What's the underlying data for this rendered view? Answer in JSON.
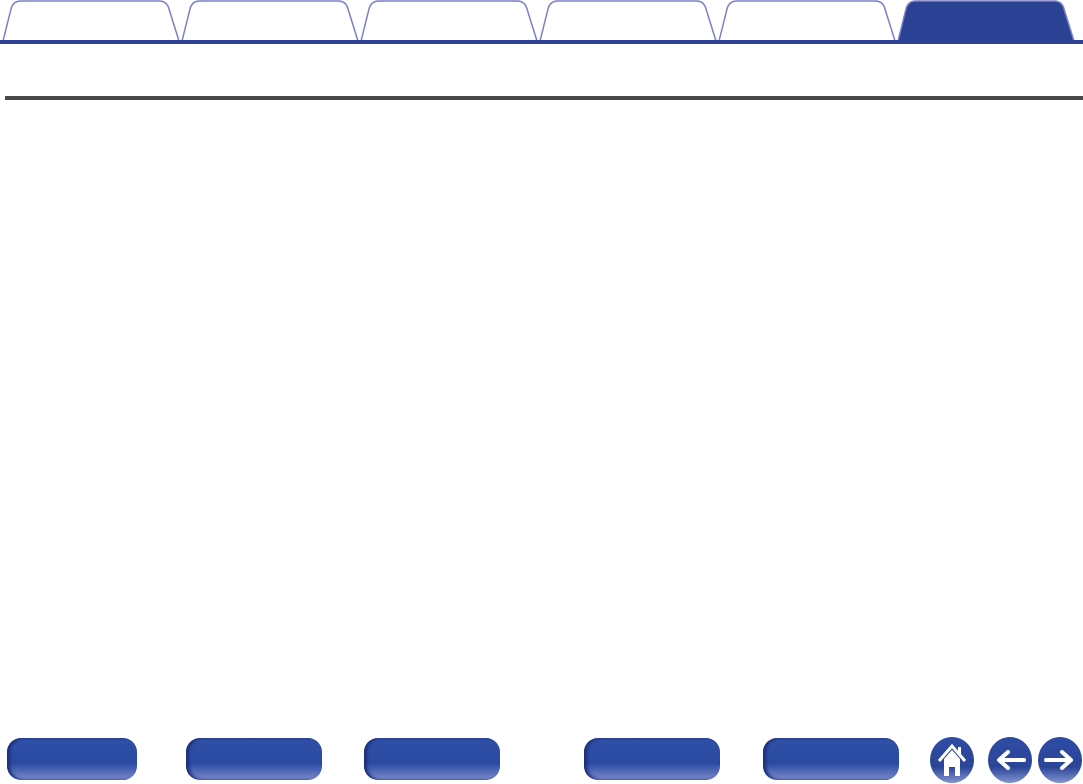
{
  "colors": {
    "accent": "#2a4194",
    "tab_outline": "#7b7fc8",
    "rule": "#4a4a4a"
  },
  "tabs": [
    {
      "label": "",
      "active": false
    },
    {
      "label": "",
      "active": false
    },
    {
      "label": "",
      "active": false
    },
    {
      "label": "",
      "active": false
    },
    {
      "label": "",
      "active": false
    },
    {
      "label": "",
      "active": true
    }
  ],
  "footer": {
    "buttons": [
      "",
      "",
      "",
      "",
      ""
    ],
    "icons": [
      "home-icon",
      "arrow-left-icon",
      "arrow-right-icon"
    ]
  }
}
